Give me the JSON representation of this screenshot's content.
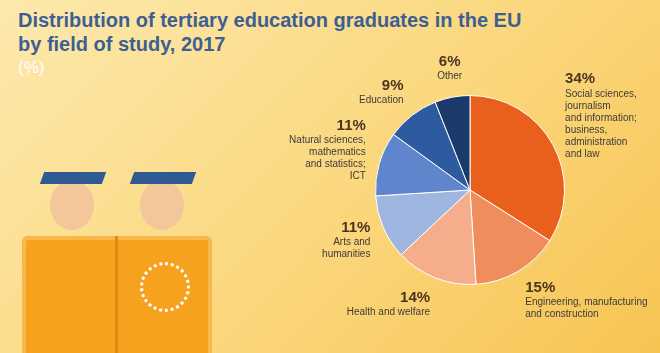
{
  "chart_data": {
    "type": "pie",
    "title": "Distribution of tertiary education graduates in the EU\nby field of study, 2017",
    "subtitle": "(%)",
    "categories": [
      "Social sciences,\njournalism\nand information;\nbusiness,\nadministration\nand law",
      "Engineering, manufacturing\nand construction",
      "Health and welfare",
      "Arts and\nhumanities",
      "Natural sciences,\nmathematics\nand statistics;\nICT",
      "Education",
      "Other"
    ],
    "values": [
      34,
      15,
      14,
      11,
      11,
      9,
      6
    ],
    "value_labels": [
      "34%",
      "15%",
      "14%",
      "11%",
      "11%",
      "9%",
      "6%"
    ],
    "colors": [
      "#e8601c",
      "#f08d5c",
      "#f6ad8c",
      "#9fb6e0",
      "#5f86cc",
      "#2e5b9f",
      "#1b3a6b"
    ],
    "data_labels": true
  }
}
